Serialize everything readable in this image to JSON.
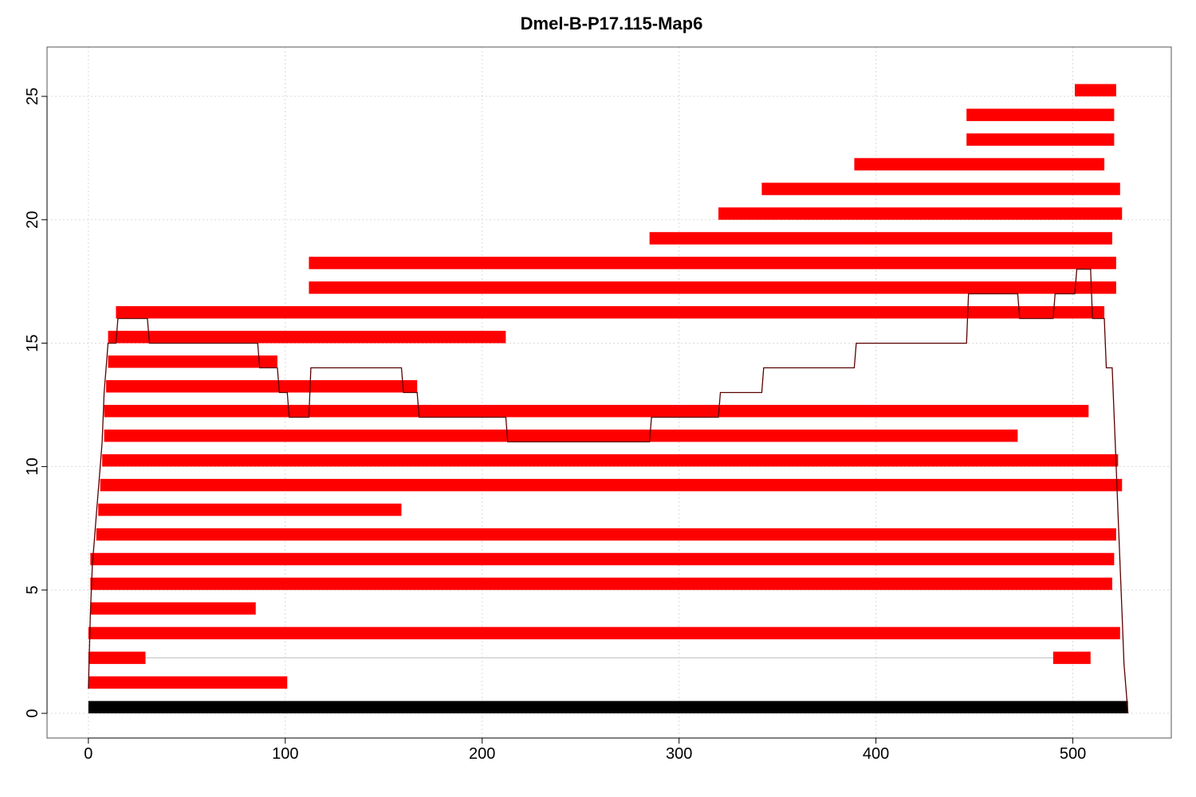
{
  "chart_data": {
    "type": "bar",
    "orientation": "horizontal-ranges",
    "title": "Dmel-B-P17.115-Map6",
    "xlabel": "",
    "ylabel": "",
    "xlim": [
      -21,
      550
    ],
    "ylim": [
      -1,
      27
    ],
    "x_ticks": [
      0,
      100,
      200,
      300,
      400,
      500
    ],
    "x_tick_labels": [
      "0",
      "100",
      "200",
      "300",
      "400",
      "500"
    ],
    "y_ticks": [
      0,
      5,
      10,
      15,
      20,
      25
    ],
    "y_tick_labels": [
      "0",
      "5",
      "10",
      "15",
      "20",
      "25"
    ],
    "grid": true,
    "legend": "none",
    "colors": {
      "segment": "#ff0000",
      "reference": "#000000",
      "coverage_line": "#5a0000",
      "grid": "#d9d9d9",
      "link_line": "#bfbfbf"
    },
    "reference": {
      "start": 0,
      "end": 528,
      "y": 0.25
    },
    "segments": [
      {
        "y": 1.25,
        "start": 0,
        "end": 101
      },
      {
        "y": 2.25,
        "start": 0,
        "end": 29
      },
      {
        "y": 2.25,
        "start": 490,
        "end": 509
      },
      {
        "y": 3.25,
        "start": 0,
        "end": 524
      },
      {
        "y": 4.25,
        "start": 1,
        "end": 85
      },
      {
        "y": 5.25,
        "start": 1,
        "end": 520
      },
      {
        "y": 6.25,
        "start": 1,
        "end": 521
      },
      {
        "y": 7.25,
        "start": 4,
        "end": 522
      },
      {
        "y": 8.25,
        "start": 5,
        "end": 159
      },
      {
        "y": 9.25,
        "start": 6,
        "end": 525
      },
      {
        "y": 10.25,
        "start": 7,
        "end": 523
      },
      {
        "y": 11.25,
        "start": 8,
        "end": 472
      },
      {
        "y": 12.25,
        "start": 8,
        "end": 508
      },
      {
        "y": 13.25,
        "start": 9,
        "end": 167
      },
      {
        "y": 14.25,
        "start": 10,
        "end": 96
      },
      {
        "y": 15.25,
        "start": 10,
        "end": 212
      },
      {
        "y": 16.25,
        "start": 14,
        "end": 516
      },
      {
        "y": 17.25,
        "start": 112,
        "end": 522
      },
      {
        "y": 18.25,
        "start": 112,
        "end": 522
      },
      {
        "y": 19.25,
        "start": 285,
        "end": 520
      },
      {
        "y": 20.25,
        "start": 320,
        "end": 525
      },
      {
        "y": 21.25,
        "start": 342,
        "end": 524
      },
      {
        "y": 22.25,
        "start": 389,
        "end": 516
      },
      {
        "y": 23.25,
        "start": 446,
        "end": 521
      },
      {
        "y": 24.25,
        "start": 446,
        "end": 521
      },
      {
        "y": 25.25,
        "start": 501,
        "end": 522
      }
    ],
    "links": [
      {
        "y": 2.25,
        "from": 29,
        "to": 490
      }
    ],
    "coverage": {
      "x": [
        0,
        1,
        2,
        3,
        4,
        5,
        6,
        7,
        8,
        9,
        10,
        14,
        15,
        30,
        31,
        86,
        87,
        96,
        97,
        101,
        102,
        112,
        113,
        159,
        160,
        167,
        168,
        212,
        213,
        285,
        286,
        320,
        321,
        342,
        343,
        389,
        390,
        446,
        447,
        472,
        473,
        490,
        491,
        501,
        502,
        509,
        510,
        516,
        517,
        520,
        521,
        522,
        523,
        524,
        525,
        526,
        528
      ],
      "y": [
        1,
        4,
        6,
        7,
        8,
        9,
        10,
        11,
        13,
        14,
        15,
        15,
        16,
        16,
        15,
        15,
        14,
        14,
        13,
        13,
        12,
        12,
        14,
        14,
        13,
        13,
        12,
        12,
        11,
        11,
        12,
        12,
        13,
        13,
        14,
        14,
        15,
        15,
        17,
        17,
        16,
        16,
        17,
        17,
        18,
        18,
        16,
        16,
        14,
        14,
        12,
        10,
        8,
        6,
        4,
        2,
        0
      ]
    }
  }
}
